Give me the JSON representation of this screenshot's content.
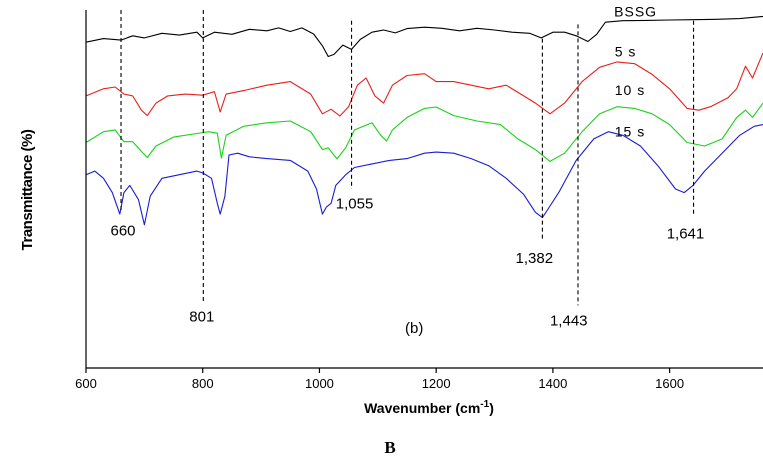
{
  "chart_data": {
    "type": "line",
    "xlabel": "Wavenumber (cm⁻¹)",
    "ylabel": "Transmittance (%)",
    "caption": "B",
    "panel_label": "(b)",
    "xlim": [
      600,
      1760
    ],
    "ylim": [
      0,
      100
    ],
    "x_ticks": [
      600,
      800,
      1000,
      1200,
      1400,
      1600
    ],
    "x_tick_labels": [
      "600",
      "800",
      "1000",
      "1200",
      "1400",
      "1600"
    ],
    "grid": false,
    "series": [
      {
        "name": "BSSG",
        "color": "#000000",
        "label_at": [
          1505,
          98.2
        ],
        "points": [
          [
            600,
            91
          ],
          [
            630,
            92
          ],
          [
            660,
            91.6
          ],
          [
            680,
            92.8
          ],
          [
            700,
            92.2
          ],
          [
            730,
            93.5
          ],
          [
            760,
            93
          ],
          [
            790,
            93.8
          ],
          [
            800,
            92.2
          ],
          [
            820,
            93.8
          ],
          [
            850,
            93.2
          ],
          [
            880,
            94.6
          ],
          [
            910,
            94.2
          ],
          [
            930,
            95
          ],
          [
            950,
            94
          ],
          [
            970,
            95
          ],
          [
            990,
            93.3
          ],
          [
            1005,
            90
          ],
          [
            1015,
            87
          ],
          [
            1025,
            87.6
          ],
          [
            1040,
            90.2
          ],
          [
            1055,
            89
          ],
          [
            1070,
            91.8
          ],
          [
            1090,
            93.8
          ],
          [
            1110,
            94.4
          ],
          [
            1130,
            93.6
          ],
          [
            1150,
            94.8
          ],
          [
            1180,
            95.2
          ],
          [
            1210,
            94.9
          ],
          [
            1240,
            94.2
          ],
          [
            1270,
            94.9
          ],
          [
            1300,
            94.4
          ],
          [
            1330,
            93.8
          ],
          [
            1360,
            93.5
          ],
          [
            1380,
            92.2
          ],
          [
            1400,
            93.8
          ],
          [
            1420,
            93.8
          ],
          [
            1440,
            92.8
          ],
          [
            1460,
            91.2
          ],
          [
            1475,
            93.2
          ],
          [
            1490,
            96.6
          ],
          [
            1520,
            97
          ],
          [
            1560,
            97.1
          ],
          [
            1600,
            97.2
          ],
          [
            1640,
            97.3
          ],
          [
            1680,
            97.4
          ],
          [
            1720,
            97.6
          ],
          [
            1760,
            98.2
          ]
        ]
      },
      {
        "name": "5 s",
        "color": "#e8201c",
        "label_at": [
          1506,
          87
        ],
        "points": [
          [
            600,
            76
          ],
          [
            630,
            78
          ],
          [
            650,
            78.5
          ],
          [
            665,
            76.5
          ],
          [
            680,
            76
          ],
          [
            695,
            72
          ],
          [
            705,
            70.5
          ],
          [
            720,
            74
          ],
          [
            740,
            76
          ],
          [
            770,
            76.5
          ],
          [
            800,
            76.2
          ],
          [
            820,
            77.2
          ],
          [
            830,
            71.5
          ],
          [
            840,
            76.5
          ],
          [
            870,
            77.5
          ],
          [
            910,
            79
          ],
          [
            950,
            80
          ],
          [
            985,
            76.5
          ],
          [
            1005,
            71
          ],
          [
            1020,
            72.3
          ],
          [
            1035,
            70.4
          ],
          [
            1050,
            73
          ],
          [
            1065,
            79
          ],
          [
            1080,
            81
          ],
          [
            1095,
            76
          ],
          [
            1110,
            74
          ],
          [
            1125,
            79
          ],
          [
            1150,
            81.7
          ],
          [
            1180,
            82.2
          ],
          [
            1200,
            80
          ],
          [
            1230,
            80
          ],
          [
            1260,
            79
          ],
          [
            1290,
            78
          ],
          [
            1320,
            79
          ],
          [
            1350,
            76
          ],
          [
            1370,
            74
          ],
          [
            1395,
            71
          ],
          [
            1420,
            74
          ],
          [
            1450,
            80
          ],
          [
            1480,
            84
          ],
          [
            1510,
            85.5
          ],
          [
            1540,
            85
          ],
          [
            1570,
            82
          ],
          [
            1600,
            78
          ],
          [
            1630,
            72.5
          ],
          [
            1650,
            72
          ],
          [
            1670,
            73
          ],
          [
            1700,
            75.5
          ],
          [
            1715,
            78
          ],
          [
            1730,
            84.3
          ],
          [
            1742,
            81
          ],
          [
            1760,
            88
          ]
        ]
      },
      {
        "name": "10 s",
        "color": "#19d219",
        "label_at": [
          1506,
          76.3
        ],
        "points": [
          [
            600,
            63
          ],
          [
            630,
            66
          ],
          [
            650,
            66.5
          ],
          [
            665,
            63.2
          ],
          [
            680,
            63.2
          ],
          [
            695,
            60.5
          ],
          [
            705,
            58.8
          ],
          [
            720,
            62
          ],
          [
            750,
            64.5
          ],
          [
            790,
            65.5
          ],
          [
            810,
            66
          ],
          [
            825,
            65.6
          ],
          [
            832,
            58.6
          ],
          [
            840,
            65
          ],
          [
            870,
            67.5
          ],
          [
            910,
            68.5
          ],
          [
            950,
            69
          ],
          [
            985,
            66
          ],
          [
            1005,
            61
          ],
          [
            1015,
            61.5
          ],
          [
            1030,
            58.4
          ],
          [
            1045,
            61.5
          ],
          [
            1060,
            66.5
          ],
          [
            1090,
            68.5
          ],
          [
            1105,
            65
          ],
          [
            1115,
            63.4
          ],
          [
            1125,
            66.5
          ],
          [
            1150,
            70
          ],
          [
            1180,
            72.5
          ],
          [
            1200,
            72.9
          ],
          [
            1230,
            70.5
          ],
          [
            1270,
            69
          ],
          [
            1310,
            68
          ],
          [
            1340,
            64
          ],
          [
            1370,
            61
          ],
          [
            1395,
            57.7
          ],
          [
            1420,
            60
          ],
          [
            1450,
            66
          ],
          [
            1480,
            71
          ],
          [
            1510,
            73
          ],
          [
            1540,
            72.5
          ],
          [
            1570,
            71
          ],
          [
            1600,
            68
          ],
          [
            1630,
            63
          ],
          [
            1660,
            62
          ],
          [
            1690,
            64
          ],
          [
            1715,
            70
          ],
          [
            1730,
            72
          ],
          [
            1742,
            70
          ],
          [
            1760,
            74
          ]
        ]
      },
      {
        "name": "15 s",
        "color": "#1c1cd2",
        "label_at": [
          1506,
          64.6
        ],
        "points": [
          [
            600,
            54
          ],
          [
            615,
            55
          ],
          [
            630,
            53
          ],
          [
            645,
            49
          ],
          [
            658,
            43
          ],
          [
            665,
            49
          ],
          [
            675,
            51
          ],
          [
            690,
            47
          ],
          [
            700,
            40
          ],
          [
            710,
            48
          ],
          [
            730,
            53
          ],
          [
            760,
            54
          ],
          [
            790,
            55
          ],
          [
            800,
            54.5
          ],
          [
            815,
            53
          ],
          [
            825,
            46
          ],
          [
            830,
            43
          ],
          [
            838,
            48
          ],
          [
            845,
            59.5
          ],
          [
            860,
            60
          ],
          [
            880,
            59
          ],
          [
            910,
            58.5
          ],
          [
            950,
            58
          ],
          [
            980,
            55
          ],
          [
            995,
            50
          ],
          [
            1005,
            43
          ],
          [
            1012,
            45
          ],
          [
            1020,
            46
          ],
          [
            1028,
            51
          ],
          [
            1045,
            54
          ],
          [
            1060,
            56
          ],
          [
            1090,
            57
          ],
          [
            1120,
            58
          ],
          [
            1150,
            58.5
          ],
          [
            1180,
            60
          ],
          [
            1200,
            60.3
          ],
          [
            1230,
            60
          ],
          [
            1260,
            58.5
          ],
          [
            1290,
            56.5
          ],
          [
            1320,
            53
          ],
          [
            1350,
            48.5
          ],
          [
            1370,
            43.5
          ],
          [
            1382,
            42
          ],
          [
            1390,
            44
          ],
          [
            1410,
            49
          ],
          [
            1440,
            58
          ],
          [
            1470,
            64
          ],
          [
            1495,
            66
          ],
          [
            1520,
            65
          ],
          [
            1550,
            62
          ],
          [
            1580,
            56.5
          ],
          [
            1610,
            50
          ],
          [
            1625,
            49
          ],
          [
            1640,
            51
          ],
          [
            1660,
            55
          ],
          [
            1690,
            60
          ],
          [
            1720,
            65
          ],
          [
            1745,
            67.5
          ],
          [
            1760,
            68
          ]
        ]
      }
    ],
    "annotations": [
      {
        "x": 660,
        "label": "660",
        "line_top": 100,
        "line_bottom": 43.5,
        "label_at": [
          642,
          37
        ]
      },
      {
        "x": 801,
        "label": "801",
        "line_top": 100,
        "line_bottom": 18.5,
        "label_at": [
          777,
          13
        ]
      },
      {
        "x": 1055,
        "label": "1,055",
        "line_top": 97,
        "line_bottom": 50,
        "label_at": [
          1028,
          44.6
        ]
      },
      {
        "x": 1382,
        "label": "1,382",
        "line_top": 92,
        "line_bottom": 35.5,
        "label_at": [
          1336,
          29.3
        ]
      },
      {
        "x": 1443,
        "label": "1,443",
        "line_top": 96,
        "line_bottom": 17.5,
        "label_at": [
          1395,
          11.9
        ]
      },
      {
        "x": 1641,
        "label": "1,641",
        "line_top": 97,
        "line_bottom": 42.5,
        "label_at": [
          1595,
          36.2
        ]
      }
    ]
  }
}
